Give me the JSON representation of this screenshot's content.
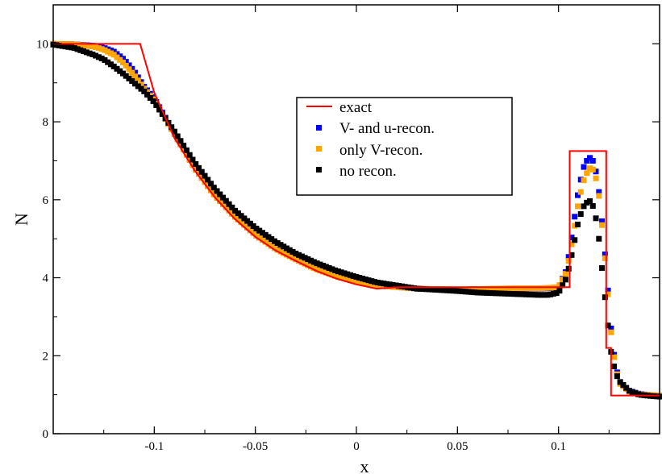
{
  "chart_data": {
    "type": "line",
    "xlabel": "x",
    "ylabel": "N",
    "xlim": [
      -0.15,
      0.15
    ],
    "ylim": [
      0,
      11
    ],
    "xticks": [
      -0.1,
      -0.05,
      0,
      0.05,
      0.1
    ],
    "xtick_labels": [
      "-0.1",
      "-0.05",
      "0",
      "0.05",
      "0.1"
    ],
    "yticks": [
      0,
      2,
      4,
      6,
      8,
      10
    ],
    "ytick_labels": [
      "0",
      "2",
      "4",
      "6",
      "8",
      "10"
    ],
    "grid": false,
    "legend_position": "upper-center-right",
    "series": [
      {
        "name": "exact",
        "style": "line",
        "color": "#ff0000",
        "x": [
          -0.15,
          -0.107,
          -0.1,
          -0.09,
          -0.08,
          -0.07,
          -0.06,
          -0.05,
          -0.04,
          -0.03,
          -0.02,
          -0.01,
          0.0,
          0.01,
          0.02,
          0.025,
          0.0975,
          0.0975,
          0.1055,
          0.1055,
          0.1236,
          0.1236,
          0.126,
          0.126,
          0.15
        ],
        "y": [
          10.0,
          10.0,
          8.75,
          7.58,
          6.75,
          6.06,
          5.5,
          5.05,
          4.7,
          4.43,
          4.18,
          3.98,
          3.83,
          3.72,
          3.76,
          3.76,
          3.76,
          3.76,
          3.76,
          7.25,
          7.25,
          2.2,
          2.2,
          0.98,
          0.98
        ]
      },
      {
        "name": "V- and u-recon.",
        "style": "markers",
        "color": "#0000ff",
        "x": [
          -0.15,
          -0.14,
          -0.13,
          -0.125,
          -0.12,
          -0.115,
          -0.11,
          -0.105,
          -0.1,
          -0.09,
          -0.08,
          -0.07,
          -0.06,
          -0.05,
          -0.04,
          -0.03,
          -0.02,
          -0.01,
          0.0,
          0.01,
          0.02,
          0.03,
          0.04,
          0.05,
          0.06,
          0.07,
          0.08,
          0.09,
          0.095,
          0.1,
          0.104,
          0.107,
          0.11,
          0.113,
          0.116,
          0.118,
          0.12,
          0.122,
          0.124,
          0.126,
          0.128,
          0.13,
          0.135,
          0.14,
          0.145,
          0.15
        ],
        "y": [
          10.0,
          9.99,
          9.95,
          9.9,
          9.8,
          9.6,
          9.3,
          8.9,
          8.6,
          7.7,
          6.82,
          6.12,
          5.57,
          5.1,
          4.75,
          4.48,
          4.23,
          4.05,
          3.9,
          3.8,
          3.76,
          3.72,
          3.7,
          3.69,
          3.7,
          3.71,
          3.72,
          3.72,
          3.73,
          3.75,
          4.2,
          5.2,
          6.3,
          6.95,
          7.1,
          6.9,
          6.2,
          5.2,
          4.0,
          2.7,
          1.8,
          1.35,
          1.1,
          1.02,
          0.99,
          0.98
        ]
      },
      {
        "name": "only V-recon.",
        "style": "markers",
        "color": "#ffa500",
        "x": [
          -0.15,
          -0.14,
          -0.13,
          -0.125,
          -0.12,
          -0.115,
          -0.11,
          -0.105,
          -0.1,
          -0.09,
          -0.08,
          -0.07,
          -0.06,
          -0.05,
          -0.04,
          -0.03,
          -0.02,
          -0.01,
          0.0,
          0.01,
          0.02,
          0.03,
          0.04,
          0.05,
          0.06,
          0.07,
          0.08,
          0.09,
          0.095,
          0.1,
          0.104,
          0.107,
          0.11,
          0.113,
          0.116,
          0.118,
          0.12,
          0.122,
          0.124,
          0.126,
          0.128,
          0.13,
          0.135,
          0.14,
          0.145,
          0.15
        ],
        "y": [
          10.0,
          9.99,
          9.93,
          9.85,
          9.72,
          9.5,
          9.2,
          8.85,
          8.55,
          7.68,
          6.8,
          6.1,
          5.56,
          5.1,
          4.74,
          4.47,
          4.22,
          4.04,
          3.89,
          3.8,
          3.76,
          3.72,
          3.71,
          3.7,
          3.71,
          3.72,
          3.73,
          3.73,
          3.74,
          3.76,
          4.15,
          5.0,
          6.0,
          6.6,
          6.85,
          6.7,
          6.1,
          5.1,
          3.9,
          2.6,
          1.75,
          1.3,
          1.08,
          1.01,
          0.99,
          0.98
        ]
      },
      {
        "name": "no recon.",
        "style": "markers",
        "color": "#000000",
        "x": [
          -0.15,
          -0.14,
          -0.13,
          -0.125,
          -0.12,
          -0.115,
          -0.11,
          -0.105,
          -0.1,
          -0.09,
          -0.08,
          -0.07,
          -0.06,
          -0.05,
          -0.04,
          -0.03,
          -0.02,
          -0.01,
          0.0,
          0.01,
          0.02,
          0.03,
          0.04,
          0.05,
          0.06,
          0.07,
          0.08,
          0.09,
          0.095,
          0.1,
          0.104,
          0.107,
          0.11,
          0.113,
          0.116,
          0.118,
          0.12,
          0.122,
          0.124,
          0.126,
          0.128,
          0.13,
          0.135,
          0.14,
          0.145,
          0.15
        ],
        "y": [
          9.98,
          9.9,
          9.72,
          9.6,
          9.42,
          9.22,
          9.0,
          8.78,
          8.5,
          7.75,
          6.95,
          6.28,
          5.72,
          5.28,
          4.92,
          4.62,
          4.38,
          4.18,
          4.02,
          3.88,
          3.8,
          3.72,
          3.69,
          3.66,
          3.62,
          3.6,
          3.58,
          3.56,
          3.56,
          3.62,
          4.0,
          4.7,
          5.5,
          5.9,
          5.98,
          5.7,
          5.0,
          4.0,
          3.0,
          2.1,
          1.6,
          1.35,
          1.1,
          1.0,
          0.97,
          0.95
        ]
      }
    ]
  }
}
